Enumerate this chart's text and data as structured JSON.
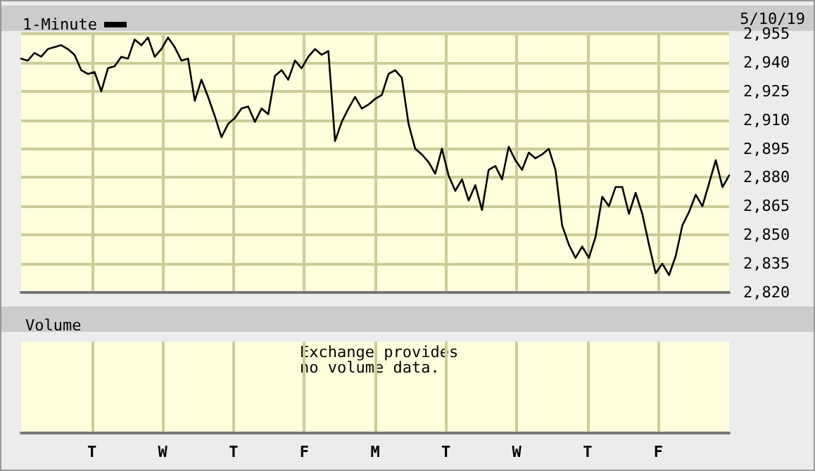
{
  "chart_data": [
    {
      "type": "line",
      "annotations": [
        "5/10/19"
      ],
      "legend": "top left",
      "grid": true,
      "tick_labels": "y",
      "line_style": "solid",
      "ylim": [
        2820,
        2955
      ],
      "yticks": [
        {
          "value": 2820,
          "label": "2,820"
        },
        {
          "value": 2835,
          "label": "2,835"
        },
        {
          "value": 2850,
          "label": "2,850"
        },
        {
          "value": 2865,
          "label": "2,865"
        },
        {
          "value": 2880,
          "label": "2,880"
        },
        {
          "value": 2895,
          "label": "2,895"
        },
        {
          "value": 2910,
          "label": "2,910"
        },
        {
          "value": 2925,
          "label": "2,925"
        },
        {
          "value": 2940,
          "label": "2,940"
        },
        {
          "value": 2955,
          "label": "2,955"
        }
      ],
      "categories": [
        null,
        null,
        null,
        null,
        null,
        null,
        null,
        null,
        null,
        null,
        null,
        null,
        null,
        null,
        null,
        null,
        null,
        null,
        null,
        null,
        null,
        null,
        null,
        null,
        null,
        null,
        null,
        null,
        null,
        null,
        null,
        null,
        null,
        null,
        null,
        null,
        null,
        null,
        null,
        null,
        null,
        null,
        null,
        null,
        null,
        null,
        null,
        null,
        null,
        null,
        null,
        null,
        null,
        null,
        null,
        null,
        null,
        null,
        null,
        null,
        null,
        null,
        null,
        null,
        null,
        null,
        null,
        null,
        null,
        null,
        null,
        null,
        null,
        null,
        null,
        null,
        null,
        null,
        null,
        null,
        null,
        null,
        null,
        null,
        null,
        null,
        null,
        null,
        null,
        null,
        null,
        null,
        null,
        null,
        null,
        null,
        null,
        null,
        null,
        null,
        null,
        null,
        null,
        null,
        null,
        null,
        null
      ],
      "series": [
        {
          "name": "1-Minute",
          "color": "#000000",
          "values": [
            2942,
            2941,
            2945,
            2943,
            2947,
            2948,
            2949,
            2947,
            2944,
            2936,
            2934,
            2935,
            2925,
            2937,
            2938,
            2943,
            2942,
            2952,
            2949,
            2953,
            2943,
            2947,
            2953,
            2948,
            2941,
            2942,
            2920,
            2931,
            2922,
            2912,
            2901,
            2908,
            2911,
            2916,
            2917,
            2909,
            2916,
            2913,
            2933,
            2936,
            2931,
            2941,
            2937,
            2943,
            2947,
            2944,
            2946,
            2899,
            2909,
            2916,
            2922,
            2916,
            2918,
            2921,
            2923,
            2934,
            2936,
            2932,
            2908,
            2895,
            2892,
            2888,
            2882,
            2895,
            2881,
            2873,
            2879,
            2868,
            2876,
            2863,
            2884,
            2886,
            2879,
            2896,
            2889,
            2884,
            2893,
            2890,
            2892,
            2895,
            2884,
            2855,
            2845,
            2838,
            2844,
            2838,
            2849,
            2870,
            2865,
            2875,
            2875,
            2861,
            2872,
            2861,
            2845,
            2830,
            2835,
            2829,
            2839,
            2855,
            2862,
            2871,
            2865,
            2877,
            2889,
            2875,
            2881
          ]
        }
      ]
    },
    {
      "type": "other",
      "title": "Volume",
      "annotations": [
        "Exchange provides\nno volume data."
      ],
      "categories": [
        null,
        "T",
        "W",
        "T",
        "F",
        "M",
        "T",
        "W",
        "T",
        "F",
        null
      ]
    }
  ]
}
